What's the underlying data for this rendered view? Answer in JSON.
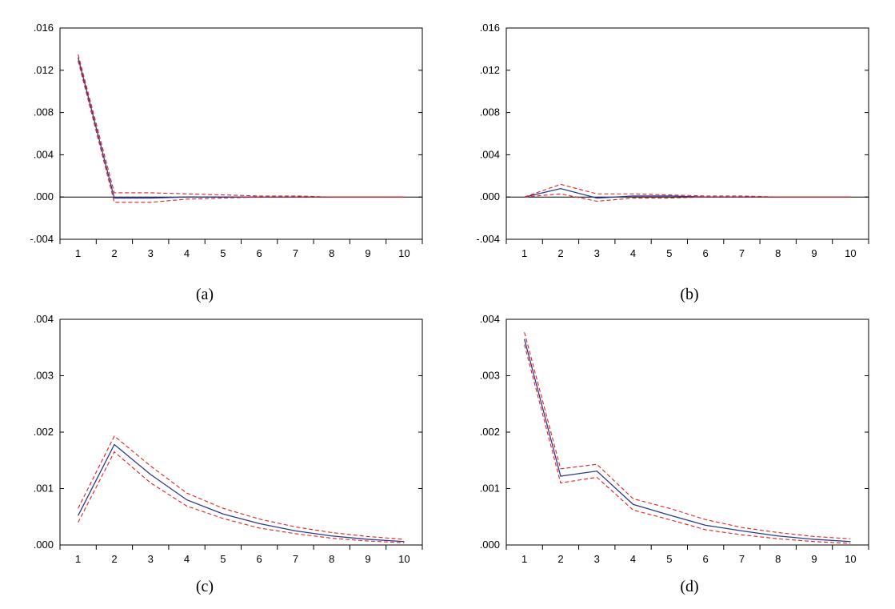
{
  "colors": {
    "response_line": "#2b3a8c",
    "confidence_band": "#e02020",
    "axes": "#000000",
    "background": "#ffffff"
  },
  "chart_data": [
    {
      "type": "line",
      "caption": "(a)",
      "x": [
        1,
        2,
        3,
        4,
        5,
        6,
        7,
        8,
        9,
        10
      ],
      "x_tick_labels": [
        "1",
        "2",
        "3",
        "4",
        "5",
        "6",
        "7",
        "8",
        "9",
        "10"
      ],
      "y_tick_labels": [
        ".016",
        ".012",
        ".008",
        ".004",
        ".000",
        "-.004"
      ],
      "y_ticks": [
        0.016,
        0.012,
        0.008,
        0.004,
        0.0,
        -0.004
      ],
      "ylim": [
        -0.004,
        0.016
      ],
      "zero_line": true,
      "series": [
        {
          "role": "response",
          "values": [
            0.0132,
            -0.0001,
            -0.0001,
            0.0,
            0.0,
            0.0,
            0.0,
            0.0,
            0.0,
            0.0
          ]
        },
        {
          "role": "upper",
          "values": [
            0.0135,
            0.0004,
            0.0004,
            0.0003,
            0.0002,
            0.0001,
            0.0001,
            0.0,
            0.0,
            0.0
          ]
        },
        {
          "role": "lower",
          "values": [
            0.0129,
            -0.0005,
            -0.0005,
            -0.0002,
            -0.0001,
            0.0,
            0.0,
            0.0,
            0.0,
            0.0
          ]
        }
      ]
    },
    {
      "type": "line",
      "caption": "(b)",
      "x": [
        1,
        2,
        3,
        4,
        5,
        6,
        7,
        8,
        9,
        10
      ],
      "x_tick_labels": [
        "1",
        "2",
        "3",
        "4",
        "5",
        "6",
        "7",
        "8",
        "9",
        "10"
      ],
      "y_tick_labels": [
        ".016",
        ".012",
        ".008",
        ".004",
        ".000",
        "-.004"
      ],
      "y_ticks": [
        0.016,
        0.012,
        0.008,
        0.004,
        0.0,
        -0.004
      ],
      "ylim": [
        -0.004,
        0.016
      ],
      "zero_line": true,
      "series": [
        {
          "role": "response",
          "values": [
            0.0,
            0.0008,
            -0.0001,
            0.0001,
            0.0001,
            0.0,
            0.0,
            0.0,
            0.0,
            0.0
          ]
        },
        {
          "role": "upper",
          "values": [
            0.0,
            0.0012,
            0.0003,
            0.0003,
            0.0002,
            0.0001,
            0.0001,
            0.0,
            0.0,
            0.0
          ]
        },
        {
          "role": "lower",
          "values": [
            0.0,
            0.0003,
            -0.0004,
            -0.0001,
            -0.0001,
            0.0,
            0.0,
            0.0,
            0.0,
            0.0
          ]
        }
      ]
    },
    {
      "type": "line",
      "caption": "(c)",
      "x": [
        1,
        2,
        3,
        4,
        5,
        6,
        7,
        8,
        9,
        10
      ],
      "x_tick_labels": [
        "1",
        "2",
        "3",
        "4",
        "5",
        "6",
        "7",
        "8",
        "9",
        "10"
      ],
      "y_tick_labels": [
        ".004",
        ".003",
        ".002",
        ".001",
        ".000"
      ],
      "y_ticks": [
        0.004,
        0.003,
        0.002,
        0.001,
        0.0
      ],
      "ylim": [
        0.0,
        0.004
      ],
      "zero_line": false,
      "series": [
        {
          "role": "response",
          "values": [
            0.00052,
            0.00178,
            0.00125,
            0.0008,
            0.00055,
            0.00038,
            0.00025,
            0.00016,
            0.0001,
            6e-05
          ]
        },
        {
          "role": "upper",
          "values": [
            0.00065,
            0.00193,
            0.0014,
            0.00092,
            0.00065,
            0.00046,
            0.00032,
            0.00022,
            0.00015,
            0.0001
          ]
        },
        {
          "role": "lower",
          "values": [
            0.0004,
            0.00165,
            0.0011,
            0.00069,
            0.00047,
            0.0003,
            0.0002,
            0.00012,
            7e-05,
            4e-05
          ]
        }
      ]
    },
    {
      "type": "line",
      "caption": "(d)",
      "x": [
        1,
        2,
        3,
        4,
        5,
        6,
        7,
        8,
        9,
        10
      ],
      "x_tick_labels": [
        "1",
        "2",
        "3",
        "4",
        "5",
        "6",
        "7",
        "8",
        "9",
        "10"
      ],
      "y_tick_labels": [
        ".004",
        ".003",
        ".002",
        ".001",
        ".000"
      ],
      "y_ticks": [
        0.004,
        0.003,
        0.002,
        0.001,
        0.0
      ],
      "ylim": [
        0.0,
        0.004
      ],
      "zero_line": false,
      "series": [
        {
          "role": "response",
          "values": [
            0.00365,
            0.00122,
            0.00131,
            0.00072,
            0.00053,
            0.00035,
            0.00025,
            0.00016,
            0.0001,
            6e-05
          ]
        },
        {
          "role": "upper",
          "values": [
            0.00377,
            0.00135,
            0.00143,
            0.00082,
            0.00065,
            0.00045,
            0.00031,
            0.00022,
            0.00015,
            0.00011
          ]
        },
        {
          "role": "lower",
          "values": [
            0.00355,
            0.0011,
            0.0012,
            0.00062,
            0.00045,
            0.00027,
            0.00018,
            0.00011,
            6e-05,
            3e-05
          ]
        }
      ]
    }
  ]
}
